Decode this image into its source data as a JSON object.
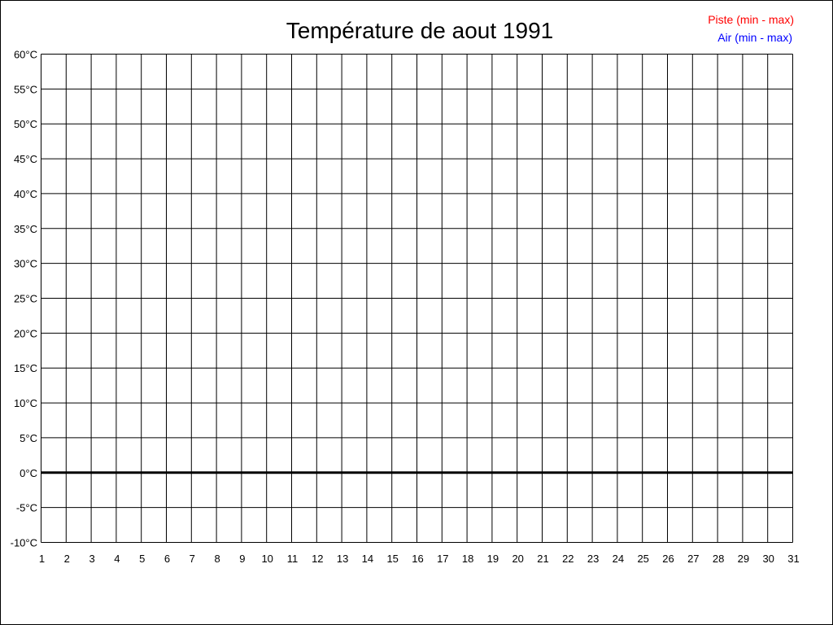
{
  "chart_data": {
    "type": "line",
    "title": "Température de aout 1991",
    "xlabel": "",
    "ylabel": "",
    "x_ticks": [
      "1",
      "2",
      "3",
      "4",
      "5",
      "6",
      "7",
      "8",
      "9",
      "10",
      "11",
      "12",
      "13",
      "14",
      "15",
      "16",
      "17",
      "18",
      "19",
      "20",
      "21",
      "22",
      "23",
      "24",
      "25",
      "26",
      "27",
      "28",
      "29",
      "30",
      "31"
    ],
    "y_ticks": [
      "60°C",
      "55°C",
      "50°C",
      "45°C",
      "40°C",
      "35°C",
      "30°C",
      "25°C",
      "20°C",
      "15°C",
      "10°C",
      "5°C",
      "0°C",
      "-5°C",
      "-10°C"
    ],
    "xlim": [
      1,
      31
    ],
    "ylim": [
      -10,
      60
    ],
    "y_step": 5,
    "grid": true,
    "zero_line_emphasized": true,
    "legend_placement": "top-right",
    "series": [
      {
        "name": "Piste (min - max)",
        "color": "#ff0000",
        "values": []
      },
      {
        "name": "Air (min - max)",
        "color": "#0000ff",
        "values": []
      }
    ]
  }
}
